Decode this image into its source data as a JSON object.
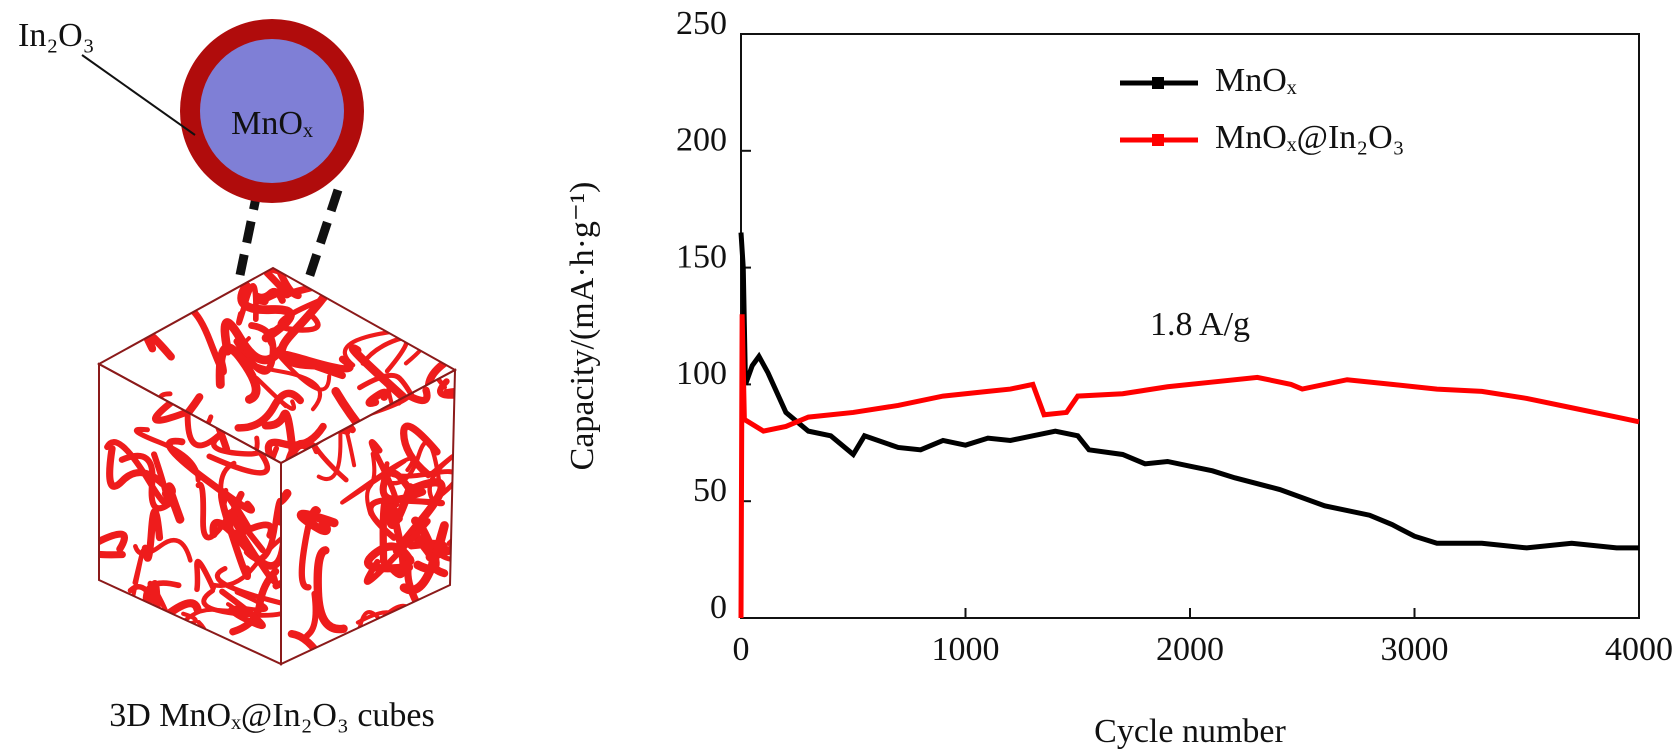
{
  "diagram": {
    "shell_label": "In₂O₃",
    "core_label": "MnOₓ",
    "caption": "3D MnOₓ@In₂O₃ cubes"
  },
  "chart_data": {
    "type": "line",
    "annotation": "1.8 A/g",
    "xlabel": "Cycle number",
    "ylabel": "Capacity/(mA·h·g⁻¹)",
    "xlim": [
      0,
      4000
    ],
    "xticks": [
      0,
      1000,
      2000,
      3000,
      4000
    ],
    "ylim": [
      0,
      250
    ],
    "yticks": [
      0,
      50,
      100,
      150,
      200,
      250
    ],
    "legend": "upper center",
    "series": [
      {
        "name": "MnOₓ",
        "color": "#000000",
        "x": [
          0,
          10,
          20,
          50,
          80,
          120,
          200,
          300,
          400,
          500,
          550,
          700,
          800,
          900,
          1000,
          1100,
          1200,
          1300,
          1400,
          1500,
          1550,
          1700,
          1800,
          1900,
          2000,
          2100,
          2200,
          2400,
          2600,
          2800,
          2900,
          3000,
          3100,
          3300,
          3500,
          3700,
          3900,
          4000
        ],
        "values": [
          165,
          150,
          100,
          108,
          112,
          105,
          88,
          80,
          78,
          70,
          78,
          73,
          72,
          76,
          74,
          77,
          76,
          78,
          80,
          78,
          72,
          70,
          66,
          67,
          65,
          63,
          60,
          55,
          48,
          44,
          40,
          35,
          32,
          32,
          30,
          32,
          30,
          30
        ]
      },
      {
        "name": "MnOₓ@In₂O₃",
        "color": "#ff0000",
        "x": [
          0,
          5,
          15,
          100,
          200,
          300,
          500,
          700,
          900,
          1100,
          1200,
          1300,
          1350,
          1450,
          1500,
          1700,
          1900,
          2100,
          2300,
          2450,
          2500,
          2700,
          2900,
          3000,
          3100,
          3300,
          3500,
          3700,
          3900,
          4000
        ],
        "values": [
          0,
          130,
          85,
          80,
          82,
          86,
          88,
          91,
          95,
          97,
          98,
          100,
          87,
          88,
          95,
          96,
          99,
          101,
          103,
          100,
          98,
          102,
          100,
          99,
          98,
          97,
          94,
          90,
          86,
          84
        ]
      }
    ]
  }
}
